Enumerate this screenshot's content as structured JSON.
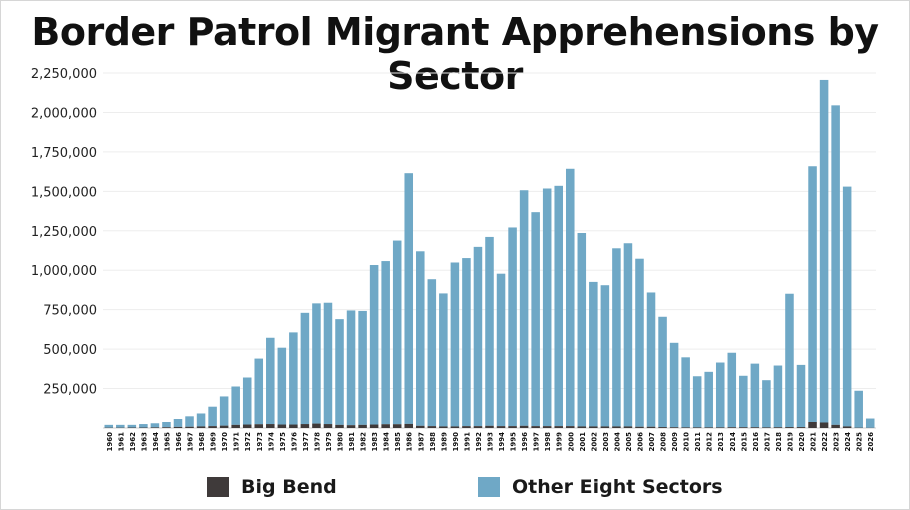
{
  "chart_data": {
    "type": "bar",
    "stacked": true,
    "title": "Border Patrol Migrant Apprehensions by Sector",
    "xlabel": "",
    "ylabel": "",
    "ylim": [
      0,
      2250000
    ],
    "yticks": [
      250000,
      500000,
      750000,
      1000000,
      1250000,
      1500000,
      1750000,
      2000000,
      2250000
    ],
    "ytick_labels": [
      "250,000",
      "500,000",
      "750,000",
      "1,000,000",
      "1,250,000",
      "1,500,000",
      "1,750,000",
      "2,000,000",
      "2,250,000"
    ],
    "grid": true,
    "legend_position": "bottom",
    "categories": [
      "1960",
      "1961",
      "1962",
      "1963",
      "1964",
      "1965",
      "1966",
      "1967",
      "1968",
      "1969",
      "1970",
      "1971",
      "1972",
      "1973",
      "1974",
      "1975",
      "1976",
      "1977",
      "1978",
      "1979",
      "1980",
      "1981",
      "1982",
      "1983",
      "1984",
      "1985",
      "1986",
      "1987",
      "1988",
      "1989",
      "1990",
      "1991",
      "1992",
      "1993",
      "1994",
      "1995",
      "1996",
      "1997",
      "1998",
      "1999",
      "2000",
      "2001",
      "2002",
      "2003",
      "2004",
      "2005",
      "2006",
      "2007",
      "2008",
      "2009",
      "2010",
      "2011",
      "2012",
      "2013",
      "2014",
      "2015",
      "2016",
      "2017",
      "2018",
      "2019",
      "2020",
      "2021",
      "2022",
      "2023",
      "2024",
      "2025",
      "2026"
    ],
    "series": [
      {
        "name": "Big Bend",
        "color": "#3f3a3a",
        "values": [
          2000,
          2000,
          3000,
          3000,
          4000,
          5000,
          7000,
          8000,
          10000,
          12000,
          15000,
          20000,
          22000,
          24000,
          25000,
          22000,
          22000,
          25000,
          28000,
          25000,
          20000,
          18000,
          20000,
          22000,
          24000,
          24000,
          26000,
          14000,
          12000,
          10000,
          10000,
          12000,
          12000,
          14000,
          12000,
          12000,
          14000,
          12000,
          12000,
          12000,
          12000,
          10000,
          10000,
          10000,
          10000,
          10000,
          8000,
          8000,
          6000,
          5000,
          4000,
          4000,
          4000,
          4000,
          5000,
          5000,
          5000,
          4000,
          5000,
          6000,
          6000,
          38000,
          35000,
          20000,
          10000,
          2000,
          1000
        ]
      },
      {
        "name": "Other Eight Sectors",
        "color": "#6fa8c6",
        "values": [
          18000,
          18000,
          17000,
          22000,
          26000,
          33000,
          50000,
          66000,
          82000,
          123000,
          185000,
          243000,
          298000,
          416000,
          547000,
          487000,
          584000,
          705000,
          762000,
          769000,
          670000,
          727000,
          722000,
          1011000,
          1034000,
          1164000,
          1589000,
          1106000,
          931000,
          843000,
          1039000,
          1065000,
          1136000,
          1197000,
          966000,
          1259000,
          1493000,
          1356000,
          1506000,
          1523000,
          1631000,
          1226000,
          916000,
          895000,
          1129000,
          1161000,
          1065000,
          851000,
          699000,
          535000,
          444000,
          324000,
          352000,
          411000,
          472000,
          326000,
          403000,
          299000,
          391000,
          845000,
          394000,
          1621000,
          2171000,
          2025000,
          1520000,
          234000,
          59000
        ]
      }
    ]
  }
}
